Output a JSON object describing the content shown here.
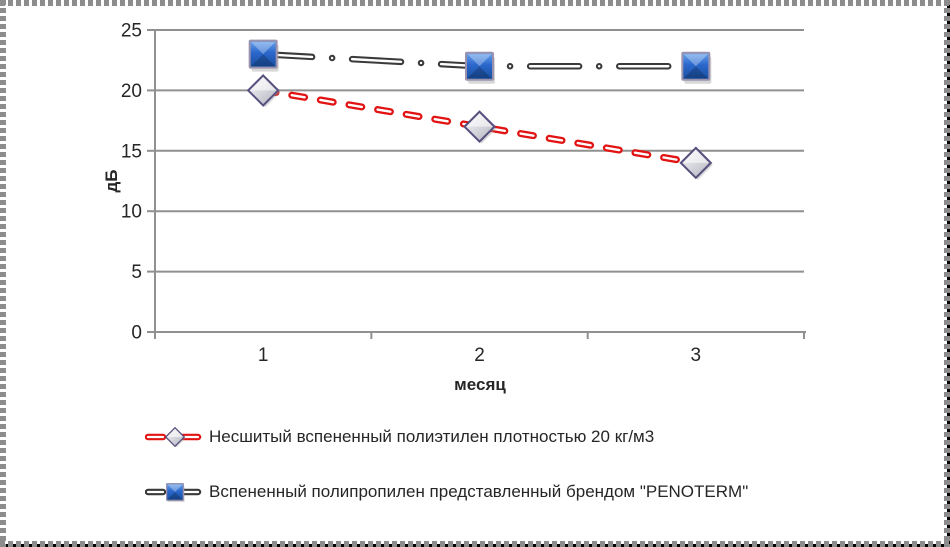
{
  "chart_data": {
    "type": "line",
    "categories": [
      "1",
      "2",
      "3"
    ],
    "series": [
      {
        "name": "Несшитый вспененный полиэтилен плотностью 20 кг/м3",
        "values": [
          20,
          17,
          14
        ],
        "color": "#e21313",
        "dash": "dash",
        "marker": "diamond",
        "marker_fill": "#e4e4ea",
        "marker_border": "#574f7e"
      },
      {
        "name": "Вспененный полипропилен представленный брендом \"PENOTERM\"",
        "values": [
          23,
          22,
          22
        ],
        "color": "#3a3a3a",
        "dash": "dash-dot",
        "marker": "square",
        "marker_fill": "#2a6cc8",
        "marker_border": "#9b93ae"
      }
    ],
    "title": "",
    "xlabel": "месяц",
    "ylabel": "дБ",
    "ylim": [
      0,
      25
    ],
    "ytick_step": 5,
    "yticks": [
      "0",
      "5",
      "10",
      "15",
      "20",
      "25"
    ],
    "grid": true,
    "legend_position": "bottom-left",
    "axis_color": "#909090",
    "text_color": "#262626"
  }
}
